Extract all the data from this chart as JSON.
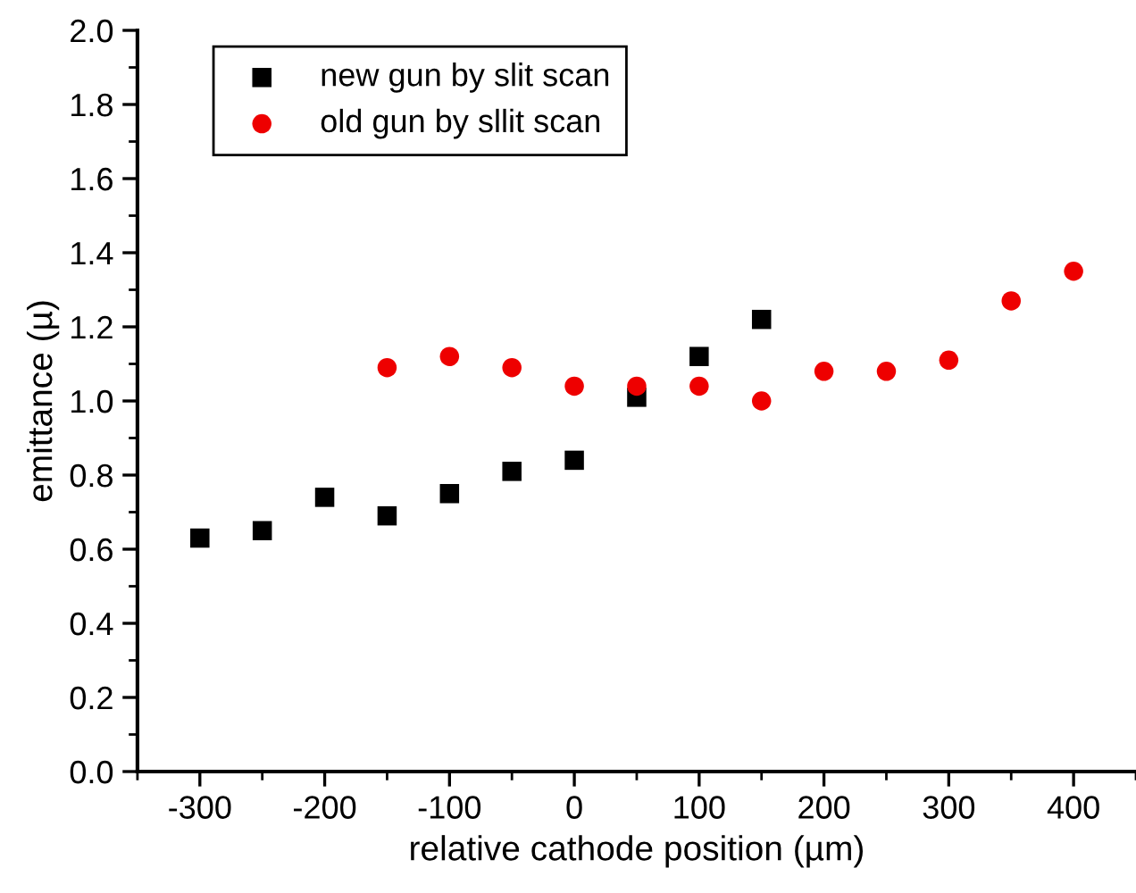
{
  "chart_data": {
    "type": "scatter",
    "xlabel": "relative cathode position (µm)",
    "ylabel": "emittance (µ)",
    "xlim": [
      -350,
      450
    ],
    "xticks": [
      -300,
      -200,
      -100,
      0,
      100,
      200,
      300,
      400
    ],
    "ylim": [
      0,
      2.0
    ],
    "yticks": [
      {
        "value": 0,
        "label": "0.0"
      },
      0.2,
      0.4,
      0.6,
      0.8,
      {
        "value": 1.0,
        "label": "1.0"
      },
      1.2,
      1.4,
      1.6,
      1.8,
      {
        "value": 2.0,
        "label": "2.0"
      }
    ],
    "grid": false,
    "legend": "top left",
    "series": [
      {
        "name": "new gun by slit scan",
        "color": "#000000",
        "marker": "square",
        "x": [
          -300,
          -250,
          -200,
          -150,
          -100,
          -50,
          0,
          50,
          100,
          150
        ],
        "values": [
          0.63,
          0.65,
          0.74,
          0.69,
          0.75,
          0.81,
          0.84,
          1.01,
          1.12,
          1.22
        ]
      },
      {
        "name": "old gun by sllit scan",
        "color": "#ee0000",
        "marker": "circle",
        "x": [
          -150,
          -100,
          -50,
          0,
          50,
          100,
          150,
          200,
          250,
          300,
          350,
          400
        ],
        "values": [
          1.09,
          1.12,
          1.09,
          1.04,
          1.04,
          1.04,
          1.0,
          1.08,
          1.08,
          1.11,
          1.27,
          1.35
        ]
      }
    ]
  }
}
